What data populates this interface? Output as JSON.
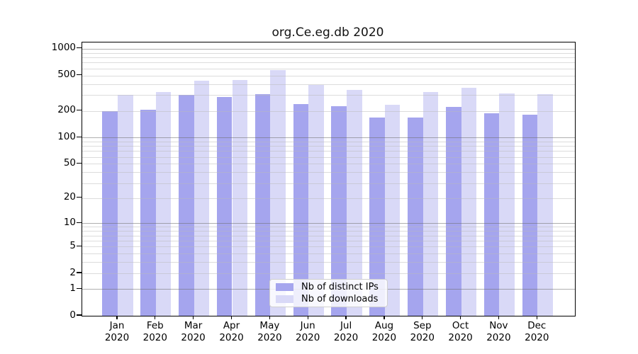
{
  "chart_data": {
    "type": "bar",
    "title": "org.Ce.eg.db 2020",
    "categories": [
      "Jan",
      "Feb",
      "Mar",
      "Apr",
      "May",
      "Jun",
      "Jul",
      "Aug",
      "Sep",
      "Oct",
      "Nov",
      "Dec"
    ],
    "x_sub_label": "2020",
    "series": [
      {
        "name": "Nb of distinct IPs",
        "color": "#a5a5ee",
        "values": [
          198,
          206,
          305,
          287,
          307,
          240,
          225,
          169,
          167,
          221,
          188,
          181
        ]
      },
      {
        "name": "Nb of downloads",
        "color": "#d9d9f7",
        "values": [
          300,
          323,
          441,
          445,
          572,
          389,
          346,
          234,
          323,
          364,
          316,
          308
        ]
      }
    ],
    "y_scale": "log1p",
    "ylim": [
      0,
      1175
    ],
    "y_ticks": [
      0,
      1,
      2,
      5,
      10,
      20,
      50,
      100,
      200,
      500,
      1000
    ],
    "y_major_gridlines": [
      1,
      10,
      100,
      1000
    ],
    "y_minor_gridlines": [
      2,
      3,
      4,
      5,
      6,
      7,
      8,
      9,
      20,
      30,
      40,
      50,
      60,
      70,
      80,
      90,
      200,
      300,
      400,
      500,
      600,
      700,
      800,
      900
    ],
    "legend_position": "lower center inside",
    "grid": "on",
    "colors": {
      "distinct_ips_bar": "#a5a5ee",
      "downloads_bar": "#d9d9f7",
      "major_gridline": "rgba(110,110,110,0.55)",
      "minor_gridline": "rgba(186,186,186,0.5)",
      "axis": "#000000"
    }
  }
}
